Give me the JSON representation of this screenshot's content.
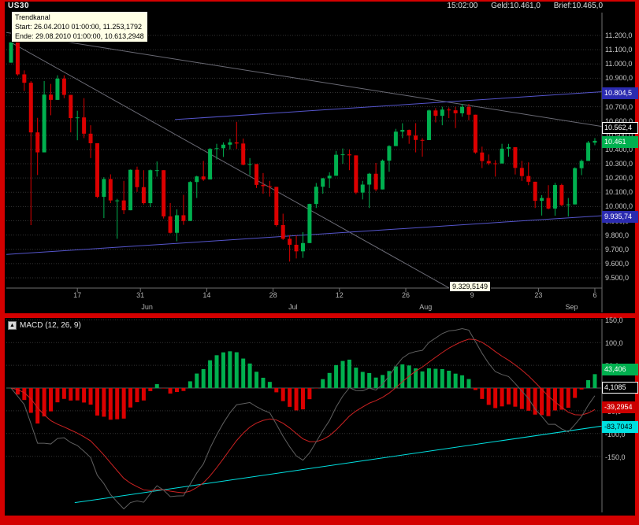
{
  "header": {
    "time": "15:02:00",
    "bid": "Geld:10.461,0",
    "ask": "Brief:10.465,0"
  },
  "tooltip": {
    "title": "Trendkanal",
    "start": "Start: 26.04.2010 01:00:00, 11.253,1792",
    "end": "Ende: 29.08.2010 01:00:00, 10.613,2948"
  },
  "chart_data": [
    {
      "type": "candlestick",
      "symbol": "US30",
      "ylim": [
        9500,
        11200
      ],
      "price_ticks": [
        {
          "label": "11.200,0",
          "value": 11200
        },
        {
          "label": "11.100,0",
          "value": 11100
        },
        {
          "label": "11.000,0",
          "value": 11000
        },
        {
          "label": "10.900,0",
          "value": 10900
        },
        {
          "label": "10.800,0",
          "value": 10800
        },
        {
          "label": "10.700,0",
          "value": 10700
        },
        {
          "label": "10.600,0",
          "value": 10600
        },
        {
          "label": "10.500,0",
          "value": 10500
        },
        {
          "label": "10.400,0",
          "value": 10400
        },
        {
          "label": "10.300,0",
          "value": 10300
        },
        {
          "label": "10.200,0",
          "value": 10200
        },
        {
          "label": "10.100,0",
          "value": 10100
        },
        {
          "label": "10.000,0",
          "value": 10000
        },
        {
          "label": "9.900,0",
          "value": 9900
        },
        {
          "label": "9.800,0",
          "value": 9800
        },
        {
          "label": "9.700,0",
          "value": 9700
        },
        {
          "label": "9.600,0",
          "value": 9600
        },
        {
          "label": "9.500,0",
          "value": 9500
        }
      ],
      "x_day_ticks": [
        {
          "label": "17",
          "i": 10
        },
        {
          "label": "31",
          "i": 19.5
        },
        {
          "label": "14",
          "i": 29.5
        },
        {
          "label": "28",
          "i": 39.5
        },
        {
          "label": "12",
          "i": 49.5
        },
        {
          "label": "26",
          "i": 59.5
        },
        {
          "label": "9",
          "i": 69.5
        },
        {
          "label": "23",
          "i": 79.5
        },
        {
          "label": "6",
          "i": 88
        }
      ],
      "x_month_ticks": [
        {
          "label": "Jun",
          "i": 20.5
        },
        {
          "label": "Jul",
          "i": 42.5
        },
        {
          "label": "Aug",
          "i": 62.5
        },
        {
          "label": "Sep",
          "i": 84.5
        }
      ],
      "colors": {
        "up": "#00b04f",
        "down": "#dc0000"
      },
      "ohlc": [
        [
          11009,
          11154,
          11009,
          11151
        ],
        [
          11151,
          11151,
          10918,
          10927
        ],
        [
          10927,
          10955,
          10810,
          10868
        ],
        [
          10868,
          10879,
          9870,
          10520
        ],
        [
          10520,
          10622,
          10221,
          10380
        ],
        [
          10380,
          10880,
          10380,
          10785
        ],
        [
          10785,
          10860,
          10640,
          10748
        ],
        [
          10748,
          10920,
          10748,
          10897
        ],
        [
          10897,
          10920,
          10760,
          10783
        ],
        [
          10783,
          10783,
          10520,
          10620
        ],
        [
          10620,
          10672,
          10465,
          10625
        ],
        [
          10625,
          10760,
          10480,
          10511
        ],
        [
          10511,
          10570,
          10340,
          10444
        ],
        [
          10444,
          10444,
          10060,
          10068
        ],
        [
          10068,
          10206,
          9919,
          10193
        ],
        [
          10193,
          10226,
          10024,
          10043
        ],
        [
          10043,
          10054,
          9774,
          10043
        ],
        [
          10043,
          10180,
          9947,
          9974
        ],
        [
          9974,
          10260,
          9974,
          10258
        ],
        [
          10258,
          10280,
          10103,
          10136
        ],
        [
          10136,
          10255,
          10014,
          10024
        ],
        [
          10024,
          10260,
          9996,
          10255
        ],
        [
          10255,
          10316,
          10210,
          10255
        ],
        [
          10255,
          10255,
          9916,
          9931
        ],
        [
          9931,
          10025,
          9811,
          9816
        ],
        [
          9816,
          9980,
          9757,
          9939
        ],
        [
          9939,
          10082,
          9872,
          9899
        ],
        [
          9899,
          10178,
          9899,
          10172
        ],
        [
          10172,
          10216,
          10060,
          10211
        ],
        [
          10211,
          10320,
          10180,
          10190
        ],
        [
          10190,
          10410,
          10190,
          10404
        ],
        [
          10404,
          10440,
          10330,
          10409
        ],
        [
          10409,
          10450,
          10348,
          10434
        ],
        [
          10434,
          10475,
          10400,
          10450
        ],
        [
          10450,
          10594,
          10404,
          10442
        ],
        [
          10442,
          10477,
          10289,
          10293
        ],
        [
          10293,
          10340,
          10220,
          10298
        ],
        [
          10298,
          10298,
          10130,
          10152
        ],
        [
          10152,
          10235,
          10090,
          10143
        ],
        [
          10143,
          10180,
          10070,
          10138
        ],
        [
          10138,
          10138,
          9860,
          9870
        ],
        [
          9870,
          9950,
          9766,
          9774
        ],
        [
          9774,
          9800,
          9614,
          9732
        ],
        [
          9732,
          9797,
          9636,
          9686
        ],
        [
          9686,
          9820,
          9640,
          9744
        ],
        [
          9744,
          10020,
          9744,
          10018
        ],
        [
          10018,
          10165,
          9990,
          10139
        ],
        [
          10139,
          10200,
          10090,
          10198
        ],
        [
          10198,
          10240,
          10130,
          10216
        ],
        [
          10216,
          10390,
          10216,
          10363
        ],
        [
          10363,
          10407,
          10300,
          10366
        ],
        [
          10366,
          10400,
          10255,
          10359
        ],
        [
          10359,
          10359,
          10087,
          10098
        ],
        [
          10098,
          10180,
          10050,
          10154
        ],
        [
          10154,
          10236,
          9990,
          10230
        ],
        [
          10230,
          10306,
          10107,
          10120
        ],
        [
          10120,
          10330,
          10120,
          10322
        ],
        [
          10322,
          10430,
          10244,
          10424
        ],
        [
          10424,
          10545,
          10424,
          10525
        ],
        [
          10525,
          10584,
          10480,
          10537
        ],
        [
          10537,
          10540,
          10440,
          10498
        ],
        [
          10498,
          10585,
          10380,
          10467
        ],
        [
          10467,
          10480,
          10350,
          10466
        ],
        [
          10466,
          10680,
          10466,
          10674
        ],
        [
          10674,
          10690,
          10590,
          10636
        ],
        [
          10636,
          10700,
          10570,
          10680
        ],
        [
          10680,
          10695,
          10620,
          10675
        ],
        [
          10675,
          10700,
          10550,
          10654
        ],
        [
          10654,
          10720,
          10630,
          10699
        ],
        [
          10699,
          10719,
          10605,
          10644
        ],
        [
          10644,
          10644,
          10370,
          10379
        ],
        [
          10379,
          10420,
          10270,
          10319
        ],
        [
          10319,
          10365,
          10290,
          10303
        ],
        [
          10303,
          10325,
          10210,
          10302
        ],
        [
          10302,
          10440,
          10302,
          10406
        ],
        [
          10406,
          10440,
          10350,
          10416
        ],
        [
          10416,
          10416,
          10225,
          10271
        ],
        [
          10271,
          10320,
          10180,
          10214
        ],
        [
          10214,
          10310,
          10150,
          10174
        ],
        [
          10174,
          10174,
          9990,
          10040
        ],
        [
          10040,
          10080,
          9937,
          10060
        ],
        [
          10060,
          10150,
          9980,
          9986
        ],
        [
          9986,
          10166,
          9936,
          10151
        ],
        [
          10151,
          10160,
          10003,
          10010
        ],
        [
          10010,
          10060,
          9930,
          10015
        ],
        [
          10015,
          10275,
          10015,
          10269
        ],
        [
          10269,
          10330,
          10220,
          10320
        ],
        [
          10320,
          10460,
          10320,
          10448
        ],
        [
          10448,
          10480,
          10430,
          10461
        ]
      ],
      "trendlines": [
        {
          "name": "downtrend-channel-upper",
          "color": "#6a6a74",
          "i1": -0.7,
          "p1": 11221,
          "i2": 89,
          "p2": 10562.4
        },
        {
          "name": "downtrend-line",
          "color": "#6a6a74",
          "i1": 0,
          "p1": 11151,
          "i2": 66,
          "p2": 9430
        },
        {
          "name": "uptrend-channel-upper",
          "color": "#5555cc",
          "i1": 24.7,
          "p1": 10610,
          "i2": 89,
          "p2": 10804.5
        },
        {
          "name": "uptrend-channel-lower",
          "color": "#5555cc",
          "i1": -0.7,
          "p1": 9664,
          "i2": 89,
          "p2": 9935.74
        }
      ],
      "value_labels": [
        {
          "name": "channel-upper-price-badge",
          "label": "10.804,5",
          "value": 10804.5,
          "bg": "#2b2bb0",
          "fg": "#ffffff",
          "border": "#2b2bb0"
        },
        {
          "name": "trendline-price-badge",
          "label": "10.562,4",
          "value": 10562.4,
          "bg": "#000000",
          "fg": "#ffffff",
          "border": "#ffffff"
        },
        {
          "name": "last-price-badge",
          "label": "10.461",
          "value": 10461,
          "bg": "#00b04f",
          "fg": "#ffffff",
          "border": "#00b04f"
        },
        {
          "name": "channel-lower-price-badge",
          "label": "9.935,74",
          "value": 9935.74,
          "bg": "#2b2bb0",
          "fg": "#ffffff",
          "border": "#2b2bb0"
        }
      ],
      "floating_label": "9.329,5149"
    },
    {
      "type": "macd",
      "title": "MACD (12, 26, 9)",
      "params": [
        12,
        26,
        9
      ],
      "ylim": [
        -160,
        155
      ],
      "y_ticks": [
        {
          "label": "150,0",
          "value": 150
        },
        {
          "label": "100,0",
          "value": 100
        },
        {
          "label": "50,0",
          "value": 50
        },
        {
          "label": "0,0",
          "value": 0
        },
        {
          "label": "-50,0",
          "value": -50
        },
        {
          "label": "-100,0",
          "value": -100
        },
        {
          "label": "-150,0",
          "value": -150
        }
      ],
      "colors": {
        "hist_up": "#00b04f",
        "hist_down": "#dc0000",
        "macd": "#5f5f5f",
        "signal": "#cc2222",
        "trendline": "#00e0e0"
      },
      "trendline": {
        "i1": 9.6,
        "v1": -252,
        "i2": 89,
        "v2": -83.7
      },
      "value_labels": [
        {
          "name": "macd-histogram-badge",
          "label": "43,406",
          "value": 43.406,
          "bg": "#00b04f",
          "fg": "#ffffff",
          "border": "#00b04f"
        },
        {
          "name": "macd-line-badge",
          "label": "4,1085",
          "value": 4.1085,
          "bg": "#000000",
          "fg": "#ffffff",
          "border": "#ffffff"
        },
        {
          "name": "macd-signal-badge",
          "label": "-39,2954",
          "value": -39.2954,
          "bg": "#cc0000",
          "fg": "#ffffff",
          "border": "#cc0000"
        },
        {
          "name": "macd-trendline-badge",
          "label": "-83,7043",
          "value": -83.7043,
          "bg": "#00e0e0",
          "fg": "#000000",
          "border": "#00e0e0"
        }
      ]
    }
  ]
}
